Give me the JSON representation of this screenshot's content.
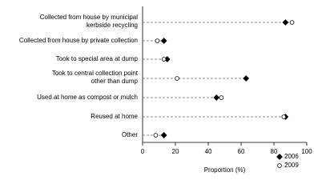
{
  "chart_data": {
    "type": "dot",
    "categories": [
      "Collected from house by municipal\nkerbside recycling",
      "Collected from house by private collection",
      "Took to special area at dump",
      "Took to central collection point\nother than dump",
      "Used at home as compost or mulch",
      "Reused at home",
      "Other"
    ],
    "series": [
      {
        "name": "2006",
        "color": "#000000",
        "values": [
          87,
          13,
          15,
          63,
          45,
          87,
          13
        ]
      },
      {
        "name": "2009",
        "color": "#ffffff",
        "values": [
          91,
          9,
          13,
          21,
          48,
          86,
          8
        ]
      }
    ],
    "xlabel": "Proportion (%)",
    "xlim": [
      0,
      100
    ],
    "xticks": [
      0,
      20,
      40,
      60,
      80,
      100
    ],
    "legend": "lower right"
  }
}
